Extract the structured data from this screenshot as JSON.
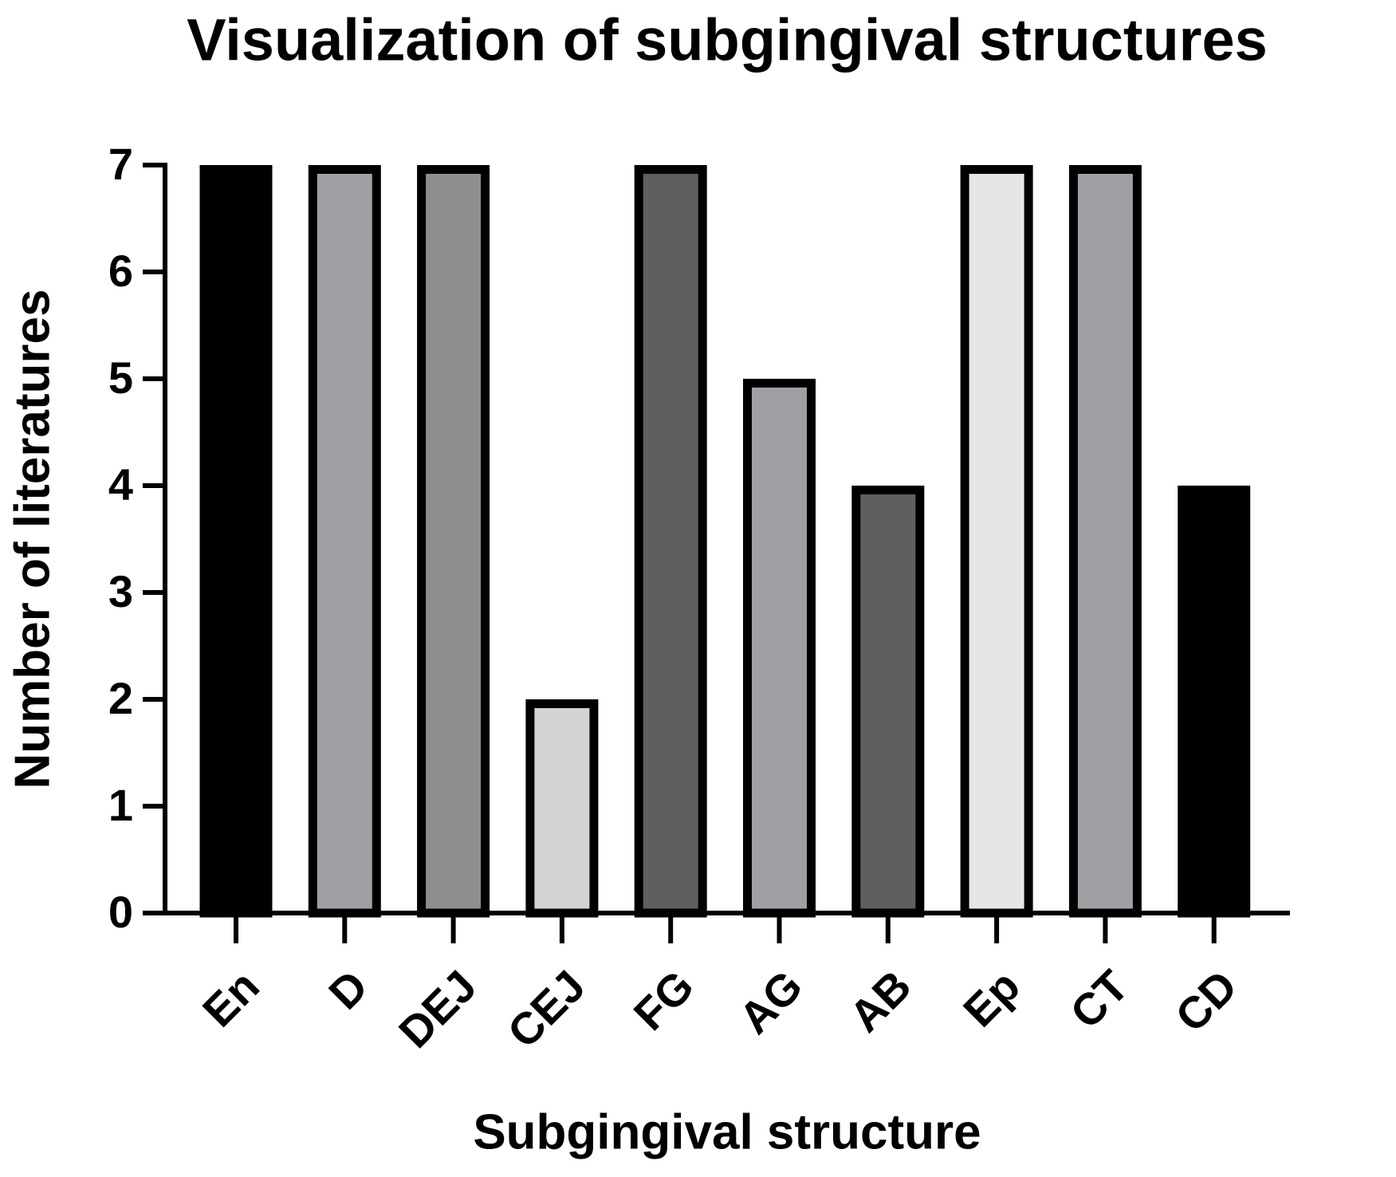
{
  "chart_data": {
    "type": "bar",
    "title": "Visualization of subgingival structures",
    "x_label": "Subgingival structure",
    "y_label": "Number of literatures",
    "categories": [
      "En",
      "D",
      "DEJ",
      "CEJ",
      "FG",
      "AG",
      "AB",
      "Ep",
      "CT",
      "CD"
    ],
    "values": [
      7,
      7,
      7,
      2,
      7,
      5,
      4,
      7,
      7,
      4
    ],
    "colors": [
      "#000000",
      "#a0a0a4",
      "#8e8e8e",
      "#d4d4d4",
      "#5f5f5f",
      "#a0a0a4",
      "#5f5f5f",
      "#e6e6e6",
      "#a0a0a4",
      "#000000"
    ],
    "ylim": [
      0,
      7
    ],
    "yticks": [
      0,
      1,
      2,
      3,
      4,
      5,
      6,
      7
    ],
    "grid": false
  }
}
